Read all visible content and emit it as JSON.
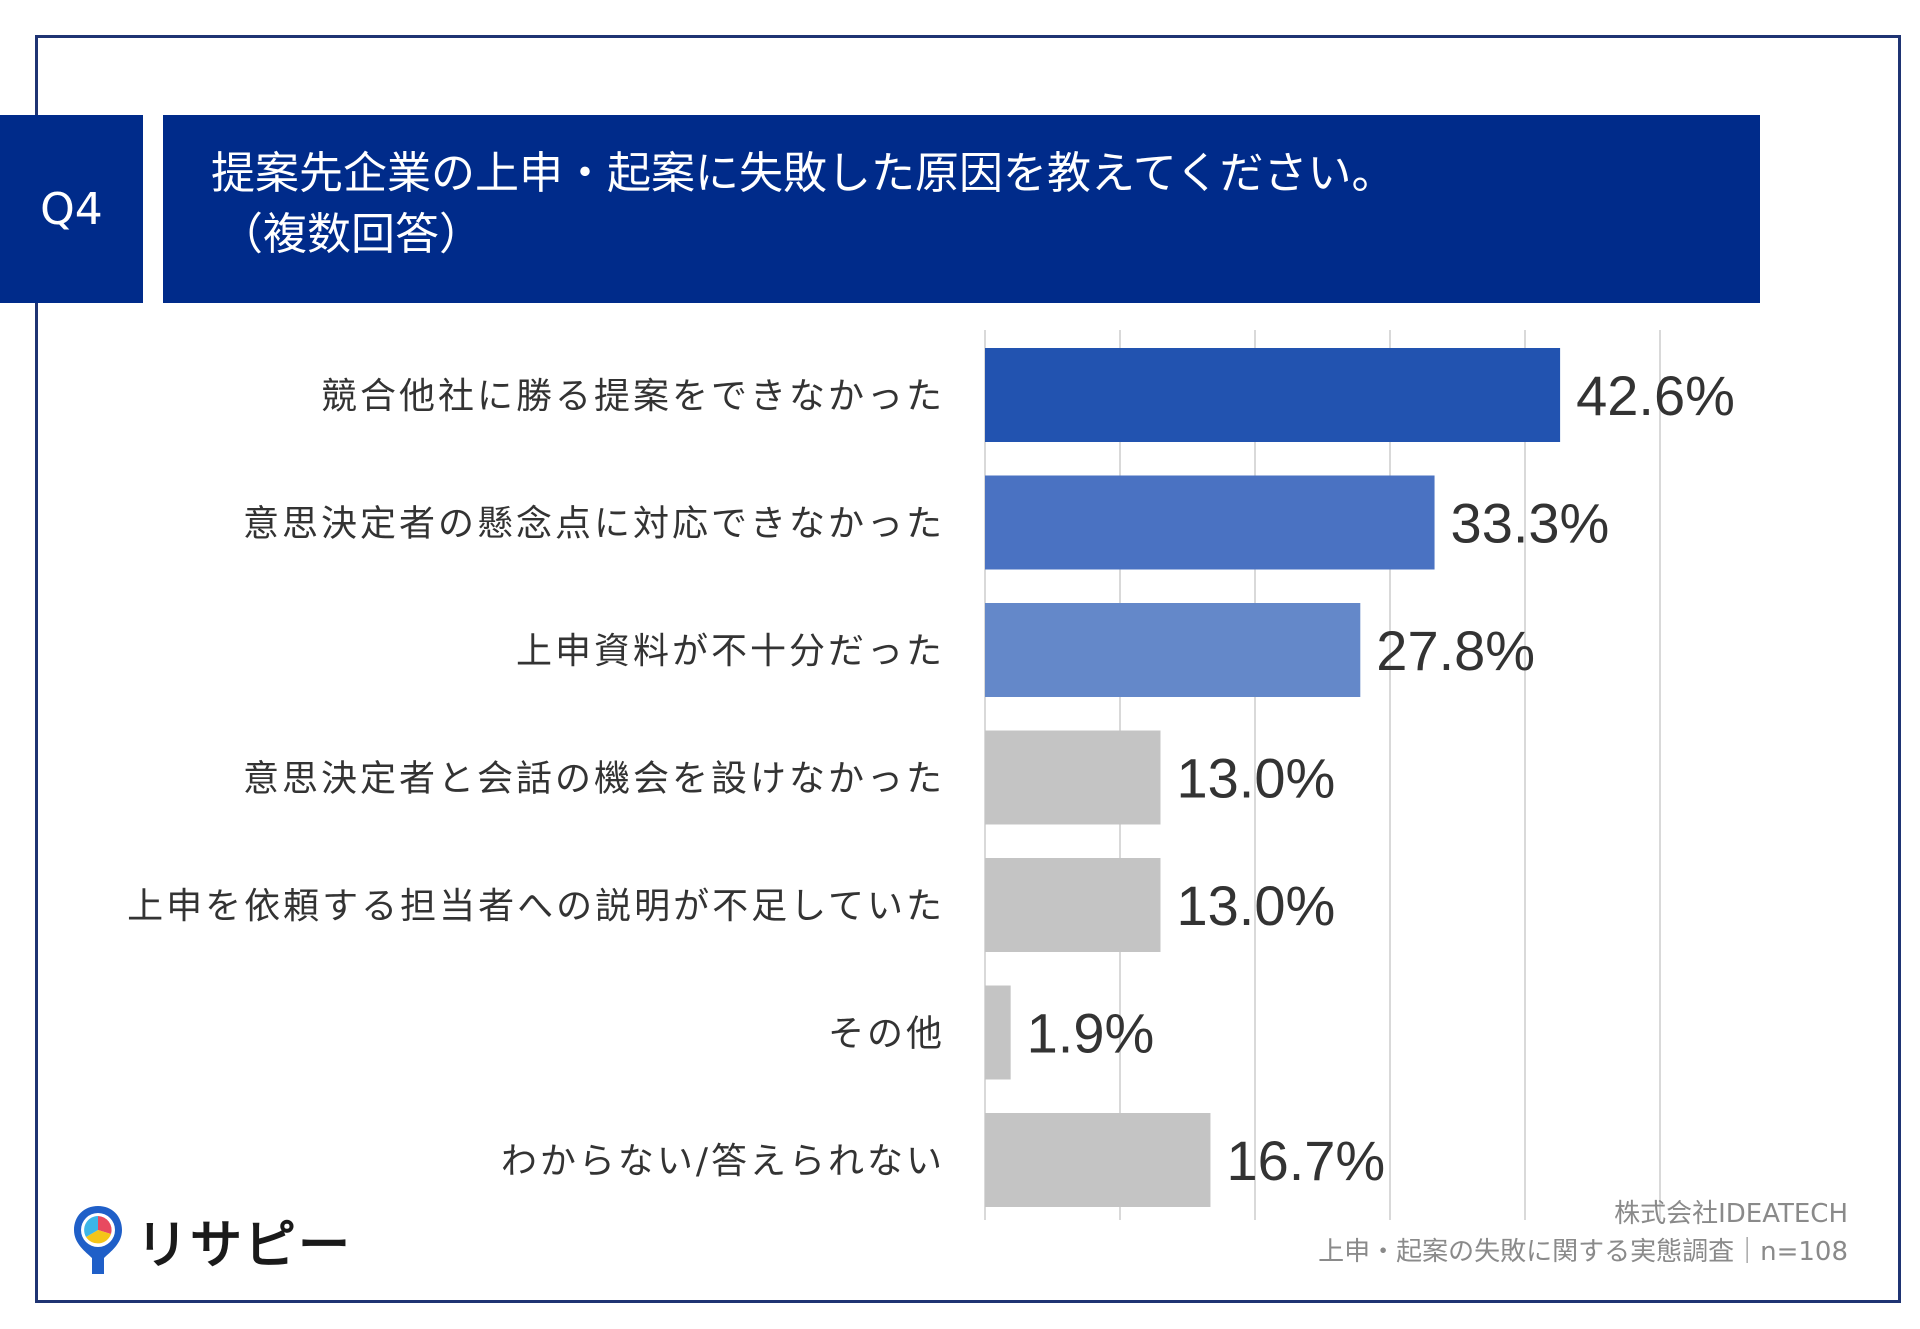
{
  "header": {
    "q_number": "Q4",
    "question_line1": "提案先企業の上申・起案に失敗した原因を教えてください。",
    "question_line2": "（複数回答）",
    "badge_color": "#002b8a"
  },
  "chart_data": {
    "type": "bar",
    "orientation": "horizontal",
    "categories": [
      "競合他社に勝る提案をできなかった",
      "意思決定者の懸念点に対応できなかった",
      "上申資料が不十分だった",
      "意思決定者と会話の機会を設けなかった",
      "上申を依頼する担当者への説明が不足していた",
      "その他",
      "わからない/答えられない"
    ],
    "values": [
      42.6,
      33.3,
      27.8,
      13.0,
      13.0,
      1.9,
      16.7
    ],
    "value_labels": [
      "42.6%",
      "33.3%",
      "27.8%",
      "13.0%",
      "13.0%",
      "1.9%",
      "16.7%"
    ],
    "bar_colors": [
      "#2253b0",
      "#4a72c2",
      "#6488c9",
      "#c4c4c4",
      "#c4c4c4",
      "#c4c4c4",
      "#c4c4c4"
    ],
    "xlim": [
      0,
      50
    ],
    "grid": true,
    "grid_color": "#d9d9d9"
  },
  "footer": {
    "source_line1": "株式会社IDEATECH",
    "source_line2": "上申・起案の失敗に関する実態調査｜n=108",
    "logo_text": "リサピー",
    "logo_icon": "location-pin-pie-icon"
  }
}
